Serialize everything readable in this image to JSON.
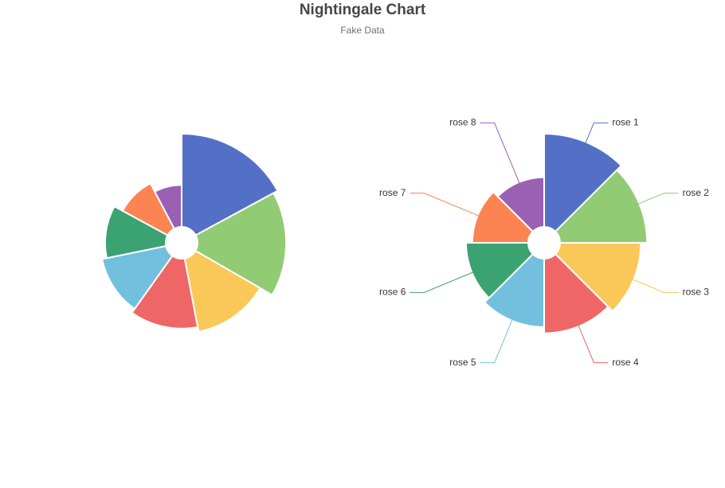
{
  "chart_data": {
    "type": "pie",
    "variant": "nightingale-rose",
    "title": "Nightingale Chart",
    "subtitle": "Fake Data",
    "categories": [
      "rose 1",
      "rose 2",
      "rose 3",
      "rose 4",
      "rose 5",
      "rose 6",
      "rose 7",
      "rose 8"
    ],
    "colors": [
      "#5470c6",
      "#91cc75",
      "#fac858",
      "#ee6666",
      "#73c0de",
      "#3ba272",
      "#fc8452",
      "#9a60b4"
    ],
    "series": [
      {
        "roseType": "radius",
        "values": [
          40,
          38,
          32,
          30,
          28,
          26,
          22,
          18
        ],
        "labels_shown": false
      },
      {
        "roseType": "area",
        "values": [
          30,
          28,
          26,
          24,
          22,
          20,
          18,
          16
        ],
        "labels_shown": true
      }
    ]
  }
}
